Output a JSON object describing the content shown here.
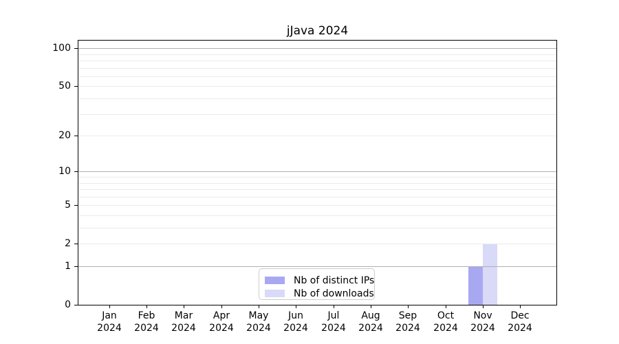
{
  "chart_data": {
    "type": "bar",
    "title": "jJava 2024",
    "categories": [
      "Jan",
      "Feb",
      "Mar",
      "Apr",
      "May",
      "Jun",
      "Jul",
      "Aug",
      "Sep",
      "Oct",
      "Nov",
      "Dec"
    ],
    "category_year": "2024",
    "series": [
      {
        "name": "Nb of distinct IPs",
        "color": "#a8a8f2",
        "values": [
          0,
          0,
          0,
          0,
          0,
          0,
          0,
          0,
          0,
          0,
          1,
          0
        ]
      },
      {
        "name": "Nb of downloads",
        "color": "#d9d9f8",
        "values": [
          0,
          0,
          0,
          0,
          0,
          0,
          0,
          0,
          0,
          0,
          2,
          0
        ]
      }
    ],
    "y_axis": {
      "scale": "log1p",
      "tick_labels": [
        0,
        1,
        2,
        5,
        10,
        20,
        50,
        100
      ],
      "major_grid_values": [
        1,
        10,
        100
      ],
      "minor_grid_values": [
        2,
        3,
        4,
        5,
        6,
        7,
        8,
        9,
        20,
        30,
        40,
        50,
        60,
        70,
        80,
        90
      ],
      "max": 115
    },
    "legend": {
      "position": "lower-center"
    },
    "grid": true,
    "colors": {
      "major_grid": "#b0b0b0",
      "minor_grid": "#ebebeb",
      "axis": "#000000",
      "background": "#ffffff",
      "text": "#000000"
    }
  }
}
